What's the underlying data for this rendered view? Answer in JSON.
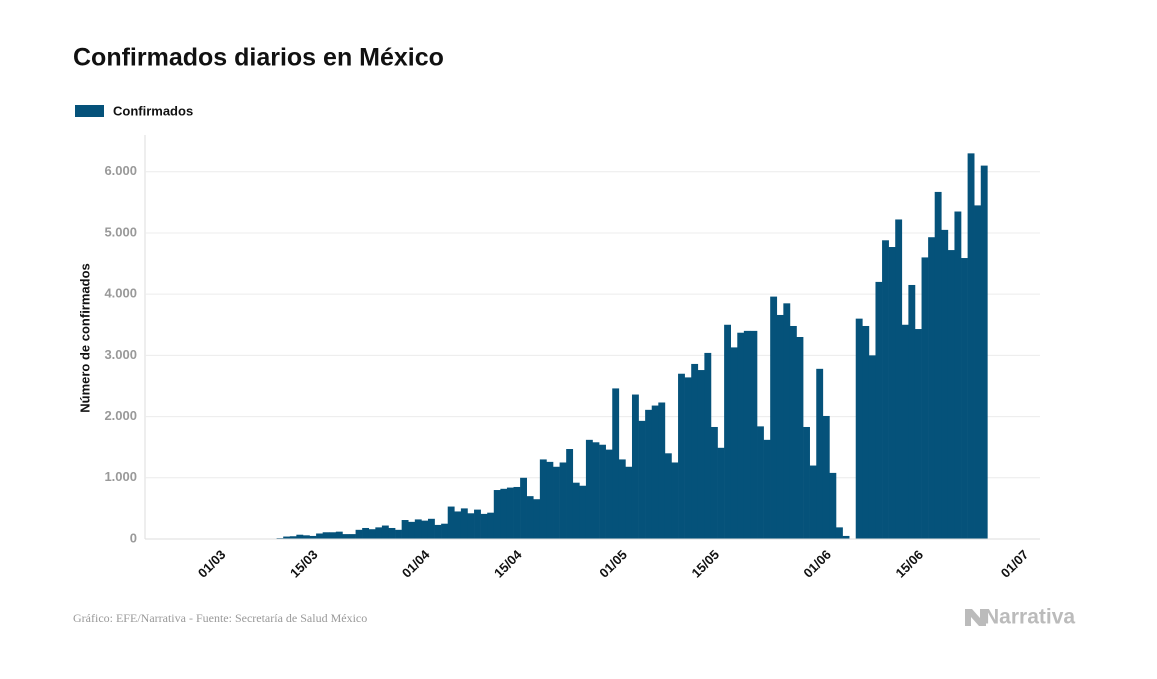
{
  "chart_data": {
    "type": "bar",
    "title": "Confirmados diarios en México",
    "y_label": "Número de confirmados",
    "source": "Gráfico: EFE/Narrativa - Fuente: Secretaría de Salud México",
    "logo": "Narrativa",
    "legend": "top-left",
    "grid": true,
    "xlim": [
      "18/02",
      "03/07"
    ],
    "xticks": [
      "01/03",
      "15/03",
      "01/04",
      "15/04",
      "01/05",
      "15/05",
      "01/06",
      "15/06",
      "01/07"
    ],
    "ylim": [
      0,
      6600
    ],
    "yticks": [
      0,
      {
        "value": 1000,
        "label": "1.000"
      },
      {
        "value": 2000,
        "label": "2.000"
      },
      {
        "value": 3000,
        "label": "3.000"
      },
      {
        "value": 4000,
        "label": "4.000"
      },
      {
        "value": 5000,
        "label": "5.000"
      },
      {
        "value": 6000,
        "label": "6.000"
      }
    ],
    "x": [
      "24/02",
      "25/02",
      "26/02",
      "27/02",
      "28/02",
      "29/02",
      "01/03",
      "02/03",
      "03/03",
      "04/03",
      "05/03",
      "06/03",
      "07/03",
      "08/03",
      "09/03",
      "10/03",
      "11/03",
      "12/03",
      "13/03",
      "14/03",
      "15/03",
      "16/03",
      "17/03",
      "18/03",
      "19/03",
      "20/03",
      "21/03",
      "22/03",
      "23/03",
      "24/03",
      "25/03",
      "26/03",
      "27/03",
      "28/03",
      "29/03",
      "30/03",
      "31/03",
      "01/04",
      "02/04",
      "03/04",
      "04/04",
      "05/04",
      "06/04",
      "07/04",
      "08/04",
      "09/04",
      "10/04",
      "11/04",
      "12/04",
      "13/04",
      "14/04",
      "15/04",
      "16/04",
      "17/04",
      "18/04",
      "19/04",
      "20/04",
      "21/04",
      "22/04",
      "23/04",
      "24/04",
      "25/04",
      "26/04",
      "27/04",
      "28/04",
      "29/04",
      "30/04",
      "01/05",
      "02/05",
      "03/05",
      "04/05",
      "05/05",
      "06/05",
      "07/05",
      "08/05",
      "09/05",
      "10/05",
      "11/05",
      "12/05",
      "13/05",
      "14/05",
      "15/05",
      "16/05",
      "17/05",
      "18/05",
      "19/05",
      "20/05",
      "21/05",
      "22/05",
      "23/05",
      "24/05",
      "25/05",
      "26/05",
      "27/05",
      "28/05",
      "29/05",
      "30/05",
      "31/05",
      "01/06",
      "02/06",
      "03/06",
      "04/06",
      "05/06",
      "06/06",
      "07/06",
      "08/06",
      "09/06",
      "10/06",
      "11/06",
      "12/06",
      "13/06",
      "14/06",
      "15/06",
      "16/06",
      "17/06",
      "18/06",
      "19/06",
      "20/06",
      "21/06",
      "22/06",
      "23/06",
      "24/06"
    ],
    "series": [
      {
        "name": "Confirmados",
        "color": "#05527a",
        "values": [
          0,
          0,
          0,
          0,
          1,
          2,
          0,
          1,
          0,
          1,
          0,
          1,
          2,
          1,
          15,
          40,
          45,
          70,
          60,
          50,
          90,
          110,
          110,
          120,
          80,
          80,
          150,
          180,
          160,
          190,
          220,
          180,
          150,
          310,
          280,
          320,
          300,
          330,
          230,
          250,
          530,
          450,
          500,
          420,
          480,
          410,
          430,
          800,
          820,
          840,
          850,
          1000,
          700,
          650,
          1300,
          1260,
          1180,
          1250,
          1470,
          920,
          870,
          1620,
          1580,
          1540,
          1460,
          2460,
          1300,
          1180,
          2360,
          1930,
          2110,
          2180,
          2230,
          1400,
          1250,
          2700,
          2640,
          2860,
          2760,
          3040,
          1830,
          1490,
          3500,
          3130,
          3370,
          3400,
          3400,
          1840,
          1620,
          3960,
          3660,
          3850,
          3480,
          3300,
          1830,
          1200,
          2780,
          2010,
          1080,
          190,
          50,
          null,
          3600,
          3480,
          3000,
          4200,
          4880,
          4770,
          5220,
          3500,
          4150,
          3430,
          4600,
          4930,
          5670,
          5050,
          4720,
          5350,
          4590,
          6300,
          5450,
          6100
        ]
      }
    ]
  }
}
